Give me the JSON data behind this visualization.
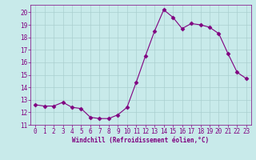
{
  "x": [
    0,
    1,
    2,
    3,
    4,
    5,
    6,
    7,
    8,
    9,
    10,
    11,
    12,
    13,
    14,
    15,
    16,
    17,
    18,
    19,
    20,
    21,
    22,
    23
  ],
  "y": [
    12.6,
    12.5,
    12.5,
    12.8,
    12.4,
    12.3,
    11.6,
    11.5,
    11.5,
    11.8,
    12.4,
    14.4,
    16.5,
    18.5,
    20.2,
    19.6,
    18.7,
    19.1,
    19.0,
    18.8,
    18.3,
    16.7,
    15.2,
    14.7
  ],
  "line_color": "#800080",
  "marker": "D",
  "markersize": 2.5,
  "background_color": "#c8eaea",
  "grid_color": "#aacfcf",
  "xlabel": "Windchill (Refroidissement éolien,°C)",
  "xlim": [
    -0.5,
    23.5
  ],
  "ylim": [
    11,
    20.6
  ],
  "yticks": [
    11,
    12,
    13,
    14,
    15,
    16,
    17,
    18,
    19,
    20
  ],
  "xticks": [
    0,
    1,
    2,
    3,
    4,
    5,
    6,
    7,
    8,
    9,
    10,
    11,
    12,
    13,
    14,
    15,
    16,
    17,
    18,
    19,
    20,
    21,
    22,
    23
  ],
  "font_color": "#800080",
  "tick_fontsize": 5.5,
  "xlabel_fontsize": 5.5
}
